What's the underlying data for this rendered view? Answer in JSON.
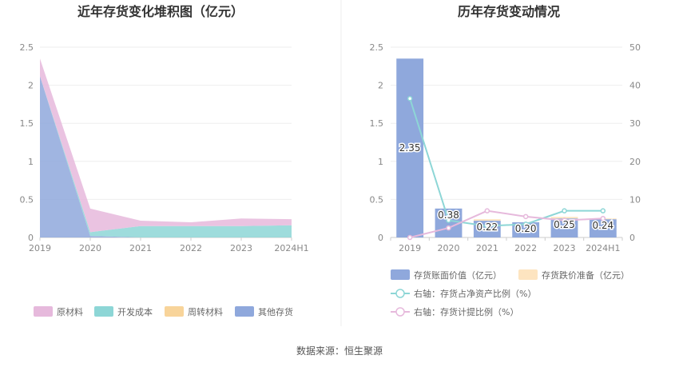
{
  "source": "数据来源：恒生聚源",
  "chart_data": [
    {
      "type": "area",
      "title": "近年存货变化堆积图（亿元）",
      "categories": [
        "2019",
        "2020",
        "2021",
        "2022",
        "2023",
        "2024H1"
      ],
      "y_ticks": [
        "0",
        "0.5",
        "1",
        "1.5",
        "2",
        "2.5"
      ],
      "ylim": [
        0,
        2.5
      ],
      "stacked": true,
      "series": [
        {
          "name": "其他存货",
          "color": "#8fa8dc",
          "values": [
            2.12,
            0.02,
            0.0,
            0.0,
            0.0,
            0.0
          ]
        },
        {
          "name": "周转材料",
          "color": "#f8d49a",
          "values": [
            0.0,
            0.0,
            0.0,
            0.0,
            0.0,
            0.0
          ]
        },
        {
          "name": "开发成本",
          "color": "#8dd6d6",
          "values": [
            0.0,
            0.05,
            0.15,
            0.15,
            0.15,
            0.16
          ]
        },
        {
          "name": "原材料",
          "color": "#e6b9dc",
          "values": [
            0.23,
            0.31,
            0.07,
            0.05,
            0.1,
            0.08
          ]
        }
      ],
      "legend_order": [
        "原材料",
        "开发成本",
        "周转材料",
        "其他存货"
      ],
      "legend_position": "bottom",
      "grid": true
    },
    {
      "type": "bar",
      "title": "历年存货变动情况",
      "categories": [
        "2019",
        "2020",
        "2021",
        "2022",
        "2023",
        "2024H1"
      ],
      "y_ticks": [
        "0",
        "0.5",
        "1",
        "1.5",
        "2",
        "2.5"
      ],
      "ylim": [
        0,
        2.5
      ],
      "y2_ticks": [
        "0",
        "10",
        "20",
        "30",
        "40",
        "50"
      ],
      "y2lim": [
        0,
        50
      ],
      "stacked": true,
      "series": [
        {
          "name": "存货账面价值（亿元）",
          "color": "#8fa8dc",
          "values": [
            2.35,
            0.38,
            0.22,
            0.2,
            0.25,
            0.24
          ],
          "labels": [
            "2.35",
            "0.38",
            "0.22",
            "0.20",
            "0.25",
            "0.24"
          ]
        },
        {
          "name": "存货跌价准备（亿元）",
          "color": "#fde4c0",
          "values": [
            0.0,
            0.0,
            0.02,
            0.0,
            0.02,
            0.01
          ]
        }
      ],
      "line_series": [
        {
          "name": "右轴：存货占净资产比例（%）",
          "color": "#8dd6d6",
          "values": [
            36.5,
            4.5,
            3.0,
            3.5,
            7.0,
            7.0
          ]
        },
        {
          "name": "右轴：存货计提比例（%）",
          "color": "#e6b9dc",
          "values": [
            0.0,
            2.5,
            7.0,
            5.5,
            4.5,
            5.0
          ]
        }
      ],
      "legend_position": "bottom",
      "grid": true
    }
  ]
}
